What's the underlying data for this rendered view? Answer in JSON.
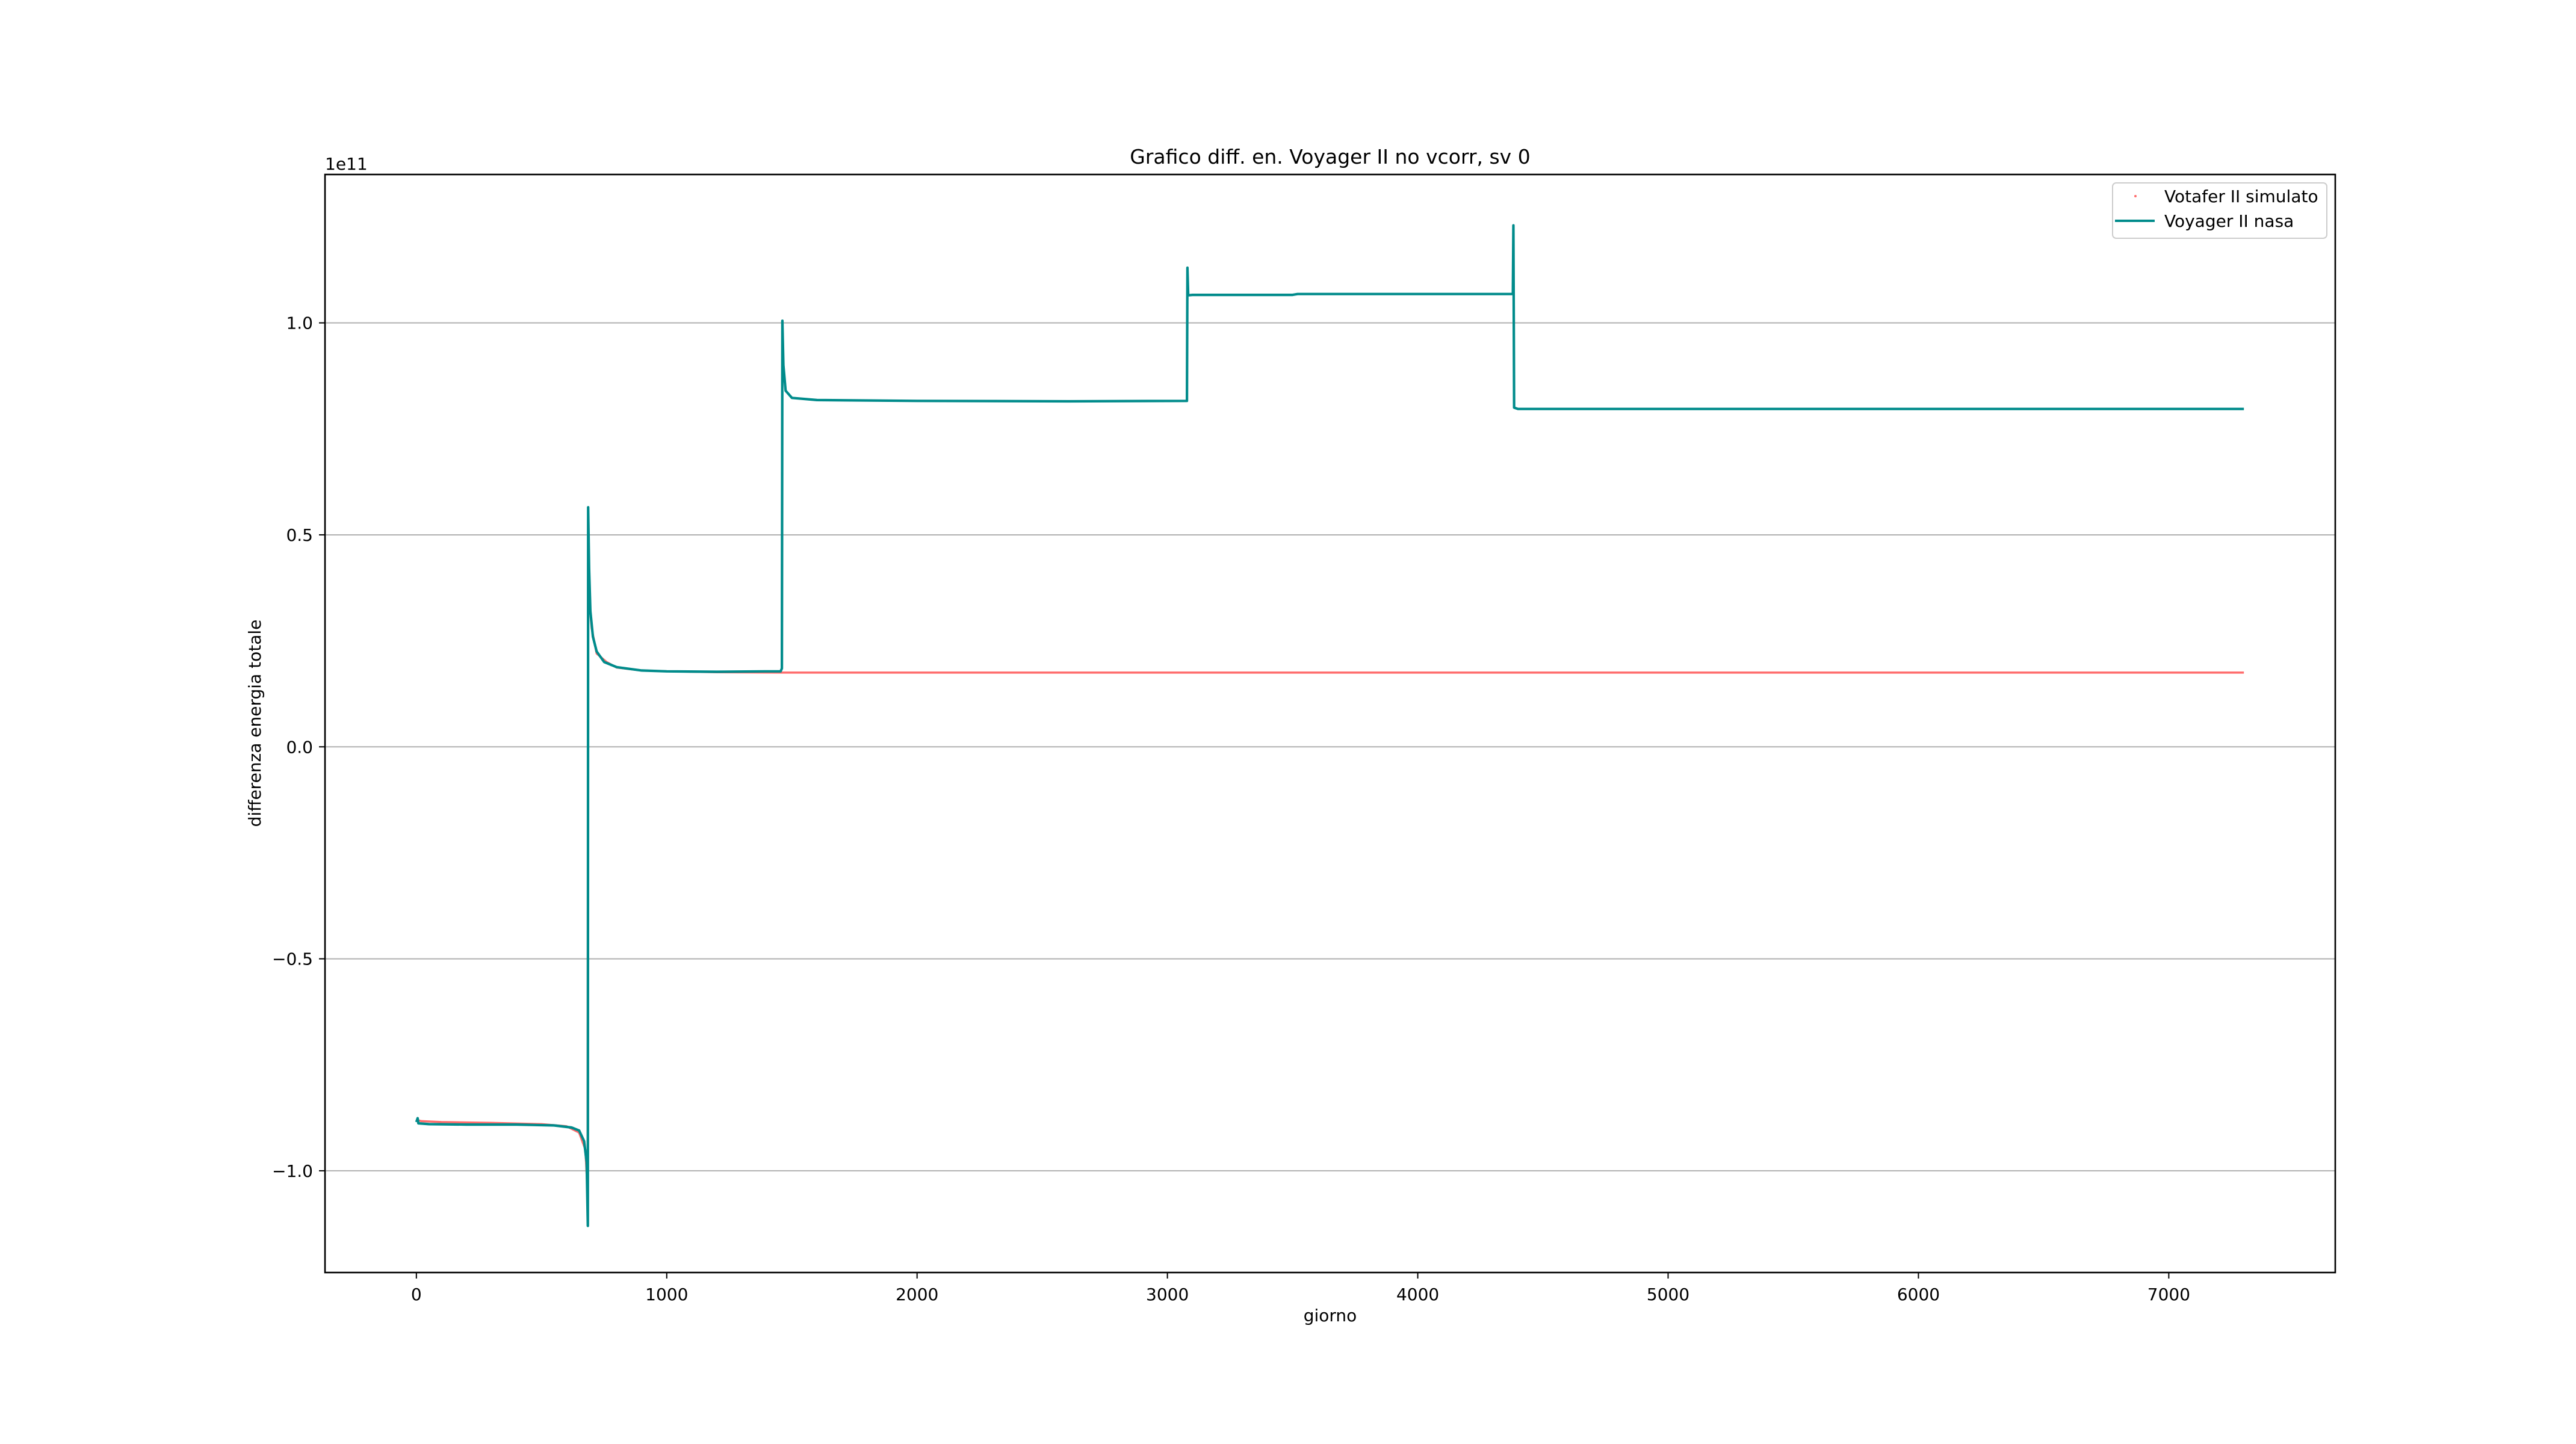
{
  "chart_data": {
    "type": "line",
    "title": "Grafico diff. en. Voyager II no vcorr, sv 0",
    "xlabel": "giorno",
    "ylabel": "differenza energia totale",
    "y_offset_label": "1e11",
    "xlim": [
      -365,
      7665
    ],
    "ylim": [
      -1.24,
      1.35
    ],
    "x_ticks": [
      {
        "value": 0,
        "label": "0"
      },
      {
        "value": 1000,
        "label": "1000"
      },
      {
        "value": 2000,
        "label": "2000"
      },
      {
        "value": 3000,
        "label": "3000"
      },
      {
        "value": 4000,
        "label": "4000"
      },
      {
        "value": 5000,
        "label": "5000"
      },
      {
        "value": 6000,
        "label": "6000"
      },
      {
        "value": 7000,
        "label": "7000"
      }
    ],
    "y_ticks": [
      {
        "value": -1.0,
        "label": "−1.0"
      },
      {
        "value": -0.5,
        "label": "−0.5"
      },
      {
        "value": 0.0,
        "label": "0.0"
      },
      {
        "value": 0.5,
        "label": "0.5"
      },
      {
        "value": 1.0,
        "label": "1.0"
      }
    ],
    "grid": "y",
    "legend": "top-right",
    "series": [
      {
        "name": "Votafer II simulato",
        "style": "dots",
        "color": "#ff6b6b",
        "points": [
          [
            0,
            -0.88
          ],
          [
            20,
            -0.883
          ],
          [
            100,
            -0.885
          ],
          [
            300,
            -0.887
          ],
          [
            500,
            -0.89
          ],
          [
            600,
            -0.895
          ],
          [
            650,
            -0.91
          ],
          [
            675,
            -0.95
          ],
          [
            684,
            -1.05
          ],
          [
            686,
            0.45
          ],
          [
            690,
            0.35
          ],
          [
            700,
            0.28
          ],
          [
            720,
            0.22
          ],
          [
            760,
            0.2
          ],
          [
            800,
            0.187
          ],
          [
            900,
            0.18
          ],
          [
            1000,
            0.178
          ],
          [
            1200,
            0.176
          ],
          [
            1460,
            0.175
          ],
          [
            2000,
            0.175
          ],
          [
            3000,
            0.175
          ],
          [
            4000,
            0.175
          ],
          [
            5000,
            0.175
          ],
          [
            6000,
            0.175
          ],
          [
            7300,
            0.175
          ]
        ]
      },
      {
        "name": "Voyager II nasa",
        "style": "line",
        "color": "#008b8b",
        "points": [
          [
            0,
            -0.885
          ],
          [
            5,
            -0.876
          ],
          [
            8,
            -0.888
          ],
          [
            50,
            -0.89
          ],
          [
            200,
            -0.891
          ],
          [
            400,
            -0.891
          ],
          [
            550,
            -0.893
          ],
          [
            620,
            -0.898
          ],
          [
            650,
            -0.905
          ],
          [
            670,
            -0.93
          ],
          [
            680,
            -0.98
          ],
          [
            685,
            -1.13
          ],
          [
            686,
            0.565
          ],
          [
            690,
            0.42
          ],
          [
            695,
            0.32
          ],
          [
            705,
            0.26
          ],
          [
            720,
            0.225
          ],
          [
            750,
            0.2
          ],
          [
            800,
            0.188
          ],
          [
            900,
            0.18
          ],
          [
            1000,
            0.178
          ],
          [
            1200,
            0.177
          ],
          [
            1400,
            0.178
          ],
          [
            1455,
            0.178
          ],
          [
            1460,
            0.185
          ],
          [
            1462,
            1.005
          ],
          [
            1466,
            0.9
          ],
          [
            1475,
            0.84
          ],
          [
            1500,
            0.823
          ],
          [
            1600,
            0.818
          ],
          [
            2000,
            0.816
          ],
          [
            2600,
            0.815
          ],
          [
            3078,
            0.816
          ],
          [
            3080,
            1.13
          ],
          [
            3083,
            1.065
          ],
          [
            3100,
            1.066
          ],
          [
            3500,
            1.066
          ],
          [
            3520,
            1.068
          ],
          [
            4000,
            1.068
          ],
          [
            4380,
            1.068
          ],
          [
            4382,
            1.23
          ],
          [
            4385,
            0.8
          ],
          [
            4400,
            0.797
          ],
          [
            5000,
            0.797
          ],
          [
            6000,
            0.797
          ],
          [
            7300,
            0.797
          ]
        ]
      }
    ]
  }
}
